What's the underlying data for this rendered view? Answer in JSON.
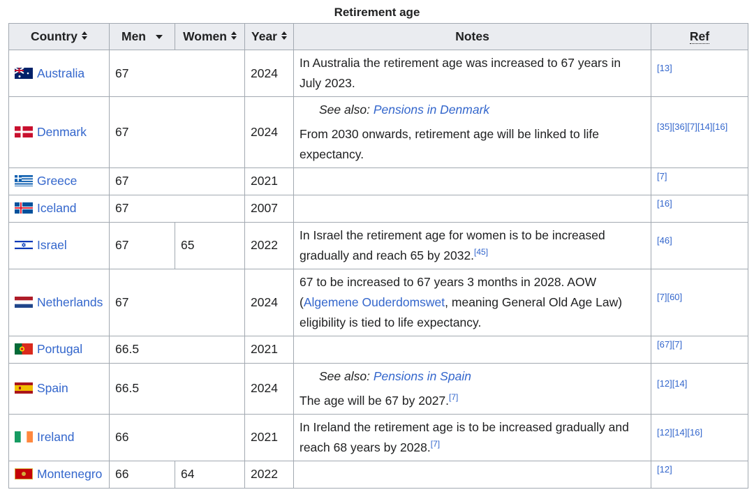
{
  "caption": "Retirement age",
  "header": {
    "country": "Country",
    "men": "Men",
    "women": "Women",
    "year": "Year",
    "notes": "Notes",
    "ref": "Ref"
  },
  "rows": [
    {
      "country": "Australia",
      "men": 67,
      "year": 2024,
      "notes": [
        {
          "text": "In Australia the retirement age was increased to 67 years in July 2023."
        }
      ],
      "refs": [
        "[13]"
      ]
    },
    {
      "country": "Denmark",
      "men": 67,
      "year": 2024,
      "see_also": {
        "label": "See also:",
        "link": "Pensions in Denmark"
      },
      "notes": [
        {
          "text": "From 2030 onwards, retirement age will be linked to life expectancy."
        }
      ],
      "refs": [
        "[35]",
        "[36]",
        "[7]",
        "[14]",
        "[16]"
      ]
    },
    {
      "country": "Greece",
      "men": 67,
      "year": 2021,
      "refs": [
        "[7]"
      ]
    },
    {
      "country": "Iceland",
      "men": 67,
      "year": 2007,
      "refs": [
        "[16]"
      ]
    },
    {
      "country": "Israel",
      "men": 67,
      "women": 65,
      "year": 2022,
      "notes": [
        {
          "text": "In Israel the retirement age for women is to be increased gradually and reach 65 by 2032."
        },
        {
          "text": "[45]",
          "kind": "sup"
        }
      ],
      "refs": [
        "[46]"
      ]
    },
    {
      "country": "Netherlands",
      "men": 67,
      "year": 2024,
      "notes": [
        {
          "text": "67 to be increased to 67 years 3 months in 2028. AOW ("
        },
        {
          "text": "Algemene Ouderdomswet",
          "kind": "link"
        },
        {
          "text": ", meaning General Old Age Law) eligibility is tied to life expectancy."
        }
      ],
      "refs": [
        "[7]",
        "[60]"
      ]
    },
    {
      "country": "Portugal",
      "men": 66.5,
      "year": 2021,
      "refs": [
        "[67]",
        "[7]"
      ]
    },
    {
      "country": "Spain",
      "men": 66.5,
      "year": 2024,
      "see_also": {
        "label": "See also:",
        "link": "Pensions in Spain"
      },
      "notes": [
        {
          "text": "The age will be 67 by 2027."
        },
        {
          "text": "[7]",
          "kind": "sup"
        }
      ],
      "refs": [
        "[12]",
        "[14]"
      ]
    },
    {
      "country": "Ireland",
      "men": 66,
      "year": 2021,
      "notes": [
        {
          "text": "In Ireland the retirement age is to be increased gradually and reach 68 years by 2028."
        },
        {
          "text": "[7]",
          "kind": "sup"
        }
      ],
      "refs": [
        "[12]",
        "[14]",
        "[16]"
      ]
    },
    {
      "country": "Montenegro",
      "men": 66,
      "women": 64,
      "year": 2022,
      "refs": [
        "[12]"
      ]
    }
  ]
}
